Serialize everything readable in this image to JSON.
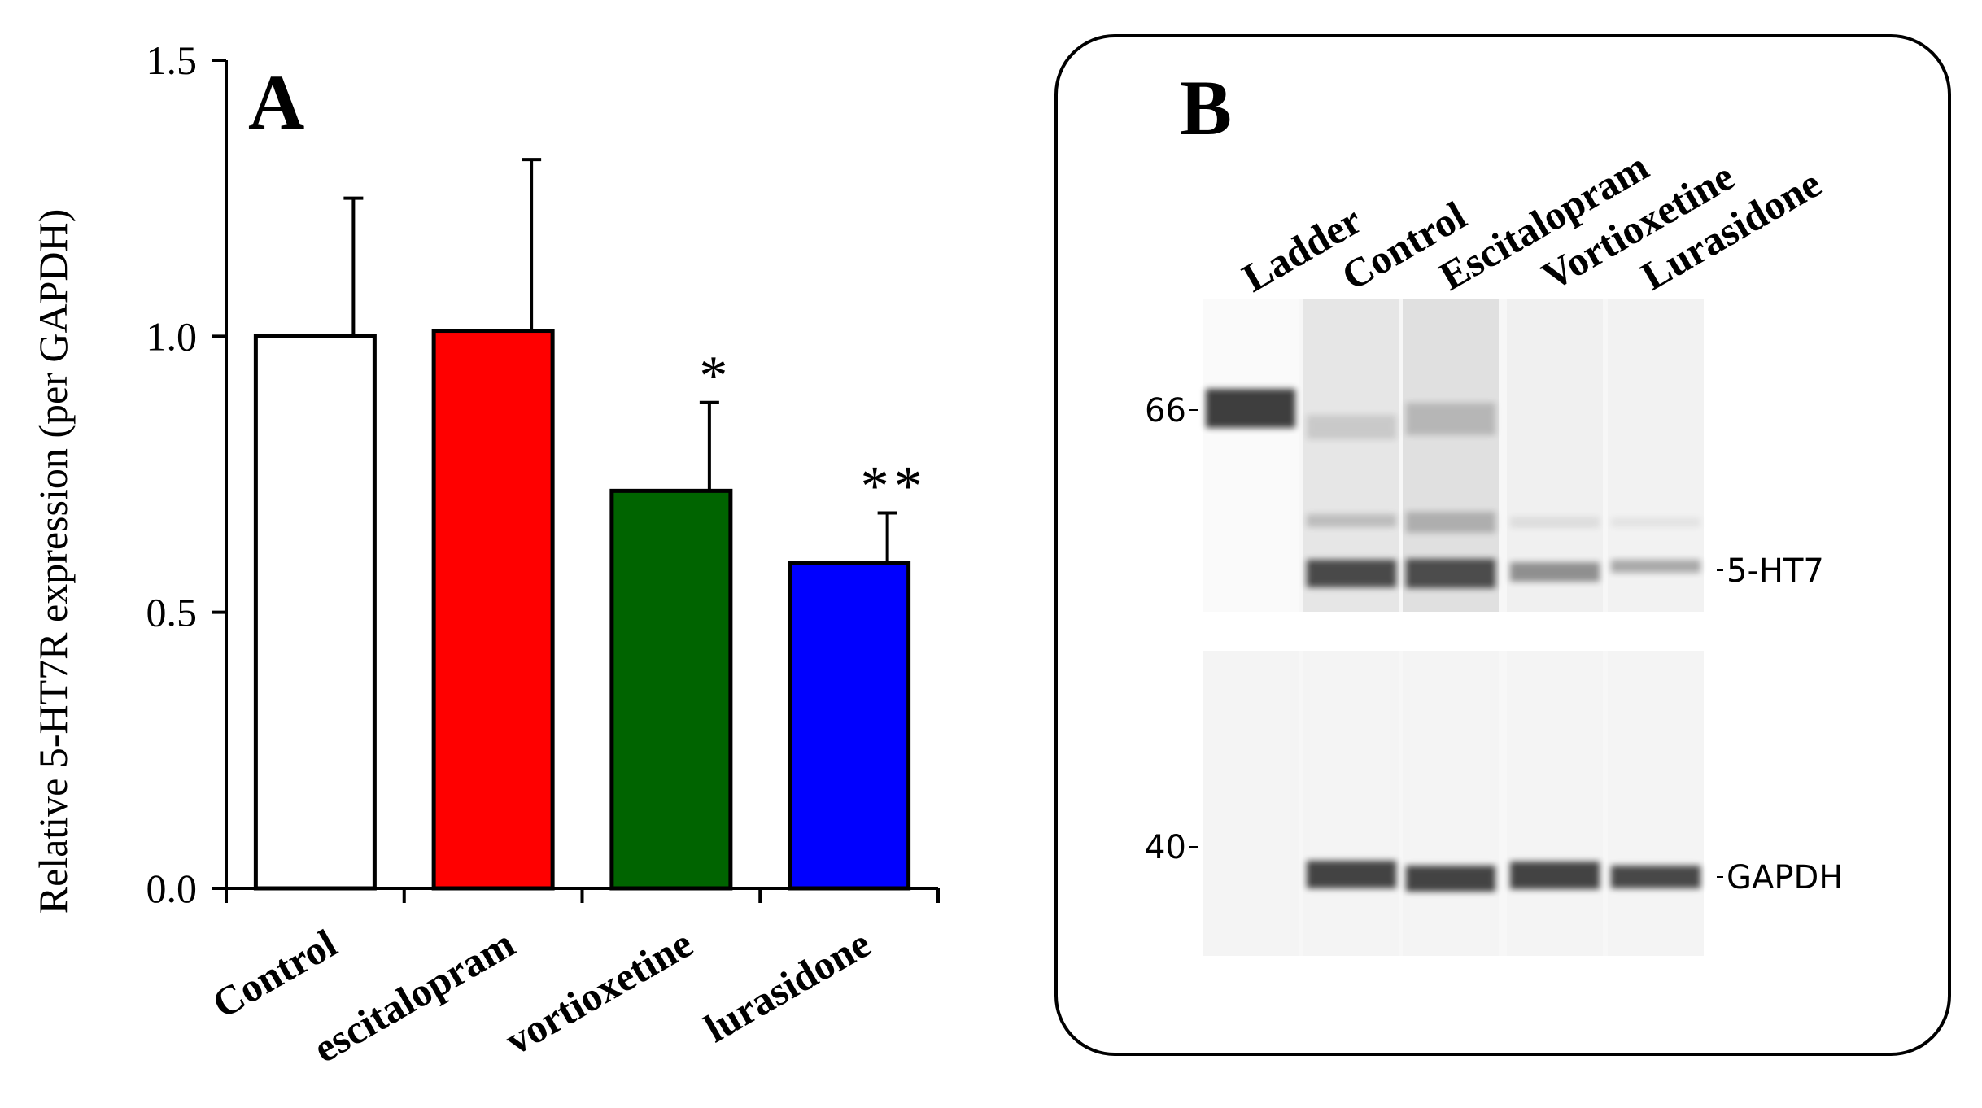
{
  "chart_data": [
    {
      "type": "bar",
      "panel_label": "A",
      "ylabel": "Relative  5-HT7R  expression (per GAPDH)",
      "xlabel": "",
      "ylim": [
        0,
        1.5
      ],
      "yticks": [
        "0.0",
        "0.5",
        "1.0",
        "1.5"
      ],
      "categories": [
        "Control",
        "escitalopram",
        "vortioxetine",
        "lurasidone"
      ],
      "values": [
        1.0,
        1.01,
        0.72,
        0.59
      ],
      "error": [
        0.25,
        0.31,
        0.16,
        0.09
      ],
      "significance": [
        "",
        "",
        "*",
        "**"
      ],
      "colors": [
        "#ffffff",
        "#ff0000",
        "#006400",
        "#0000ff"
      ],
      "grid": false
    },
    {
      "type": "other",
      "panel_label": "B",
      "lanes": [
        "Ladder",
        "Control",
        "Escitalopram",
        "Vortioxetine",
        "Lurasidone"
      ],
      "markers": [
        "66",
        "40"
      ],
      "band_labels": [
        "5-HT7",
        "GAPDH"
      ]
    }
  ]
}
